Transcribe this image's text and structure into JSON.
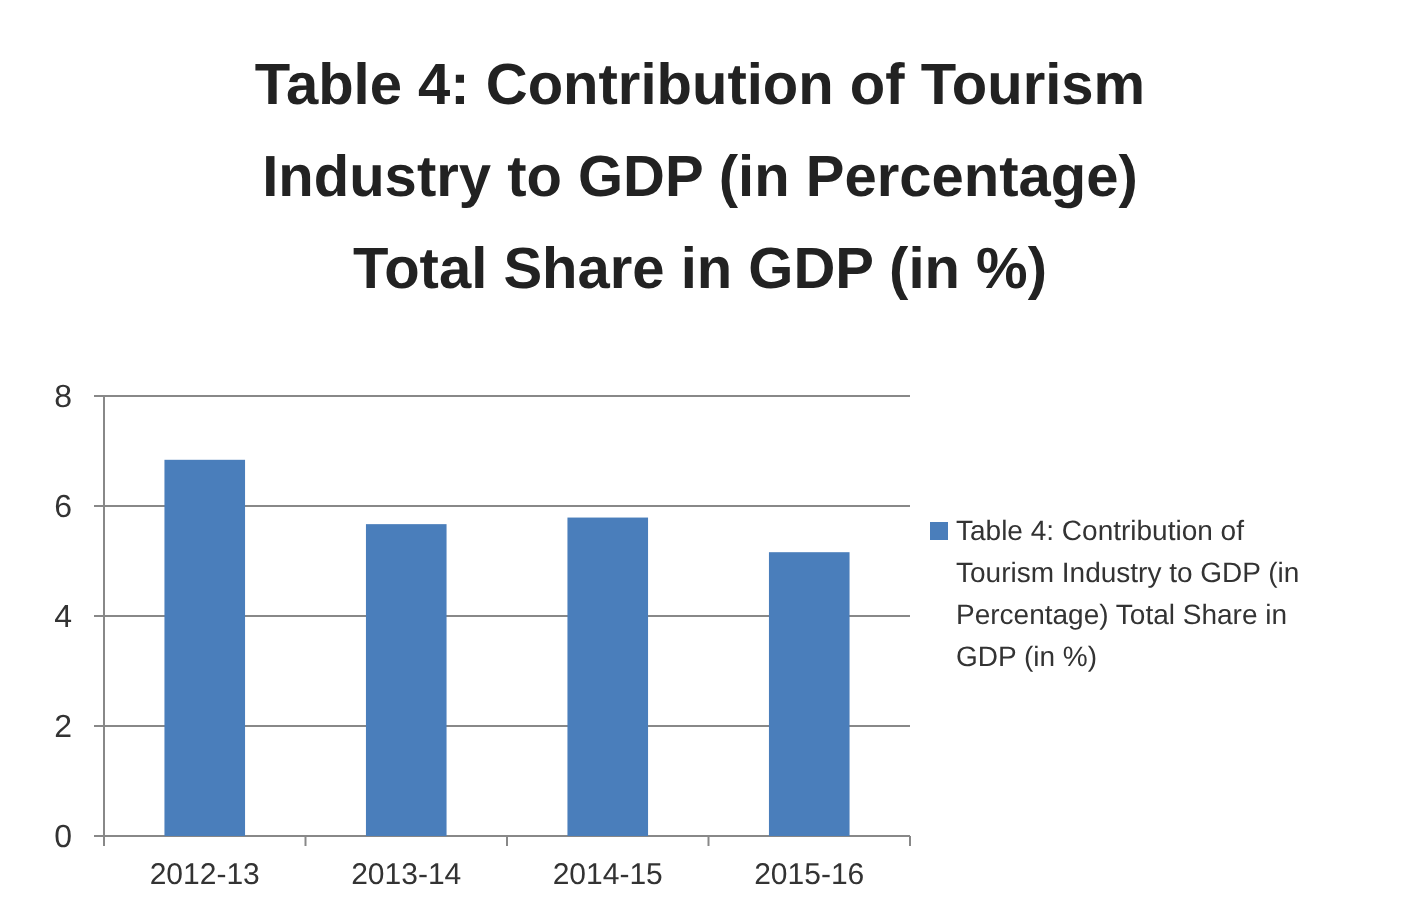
{
  "chart_data": {
    "type": "bar",
    "title": "Table 4: Contribution of Tourism Industry to GDP (in Percentage) Total Share in GDP (in %)",
    "categories": [
      "2012-13",
      "2013-14",
      "2014-15",
      "2015-16"
    ],
    "series": [
      {
        "name": "Table 4: Contribution of Tourism Industry to GDP (in Percentage) Total Share in GDP (in %)",
        "color": "#4a7ebb",
        "values": [
          6.84,
          5.67,
          5.79,
          5.16
        ]
      }
    ],
    "ylim": [
      0,
      8
    ],
    "yticks": [
      0,
      2,
      4,
      6,
      8
    ],
    "grid": "y",
    "legend": "right"
  }
}
